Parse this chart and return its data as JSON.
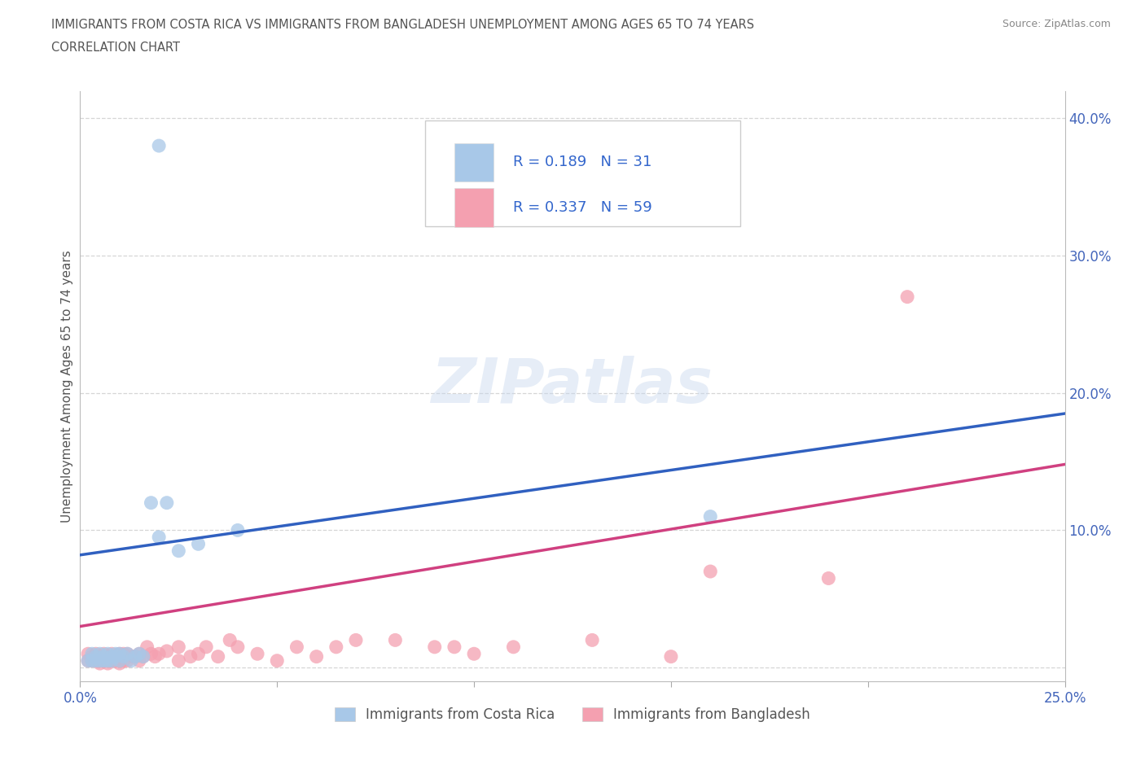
{
  "title_line1": "IMMIGRANTS FROM COSTA RICA VS IMMIGRANTS FROM BANGLADESH UNEMPLOYMENT AMONG AGES 65 TO 74 YEARS",
  "title_line2": "CORRELATION CHART",
  "source_text": "Source: ZipAtlas.com",
  "ylabel": "Unemployment Among Ages 65 to 74 years",
  "xlim": [
    0.0,
    0.25
  ],
  "ylim": [
    -0.01,
    0.42
  ],
  "xticks": [
    0.0,
    0.05,
    0.1,
    0.15,
    0.2,
    0.25
  ],
  "yticks": [
    0.0,
    0.1,
    0.2,
    0.3,
    0.4
  ],
  "xticklabels": [
    "0.0%",
    "",
    "",
    "",
    "",
    "25.0%"
  ],
  "yticklabels_right": [
    "",
    "10.0%",
    "20.0%",
    "30.0%",
    "40.0%"
  ],
  "color_blue": "#a8c8e8",
  "color_pink": "#f4a0b0",
  "trendline_blue": "#3060c0",
  "trendline_pink": "#d04080",
  "legend_label_blue": "Immigrants from Costa Rica",
  "legend_label_pink": "Immigrants from Bangladesh",
  "legend_R_blue": "0.189",
  "legend_N_blue": "31",
  "legend_R_pink": "0.337",
  "legend_N_pink": "59",
  "watermark": "ZIPatlas",
  "blue_x": [
    0.002,
    0.003,
    0.003,
    0.004,
    0.004,
    0.005,
    0.005,
    0.006,
    0.006,
    0.007,
    0.007,
    0.008,
    0.008,
    0.009,
    0.009,
    0.01,
    0.01,
    0.011,
    0.012,
    0.013,
    0.014,
    0.015,
    0.016,
    0.018,
    0.02,
    0.022,
    0.025,
    0.03,
    0.04,
    0.16,
    0.02
  ],
  "blue_y": [
    0.005,
    0.005,
    0.01,
    0.005,
    0.008,
    0.005,
    0.01,
    0.005,
    0.008,
    0.005,
    0.01,
    0.005,
    0.008,
    0.008,
    0.01,
    0.005,
    0.01,
    0.008,
    0.01,
    0.005,
    0.008,
    0.01,
    0.008,
    0.12,
    0.095,
    0.12,
    0.085,
    0.09,
    0.1,
    0.11,
    0.38
  ],
  "pink_x": [
    0.002,
    0.002,
    0.003,
    0.003,
    0.004,
    0.004,
    0.005,
    0.005,
    0.005,
    0.006,
    0.006,
    0.007,
    0.007,
    0.007,
    0.008,
    0.008,
    0.009,
    0.009,
    0.01,
    0.01,
    0.01,
    0.011,
    0.011,
    0.012,
    0.012,
    0.013,
    0.014,
    0.015,
    0.015,
    0.016,
    0.017,
    0.018,
    0.019,
    0.02,
    0.022,
    0.025,
    0.025,
    0.028,
    0.03,
    0.032,
    0.035,
    0.038,
    0.04,
    0.045,
    0.05,
    0.055,
    0.06,
    0.065,
    0.07,
    0.08,
    0.09,
    0.095,
    0.1,
    0.11,
    0.13,
    0.15,
    0.16,
    0.19,
    0.21
  ],
  "pink_y": [
    0.005,
    0.01,
    0.005,
    0.008,
    0.005,
    0.01,
    0.003,
    0.005,
    0.008,
    0.005,
    0.01,
    0.003,
    0.005,
    0.008,
    0.005,
    0.01,
    0.005,
    0.008,
    0.003,
    0.005,
    0.01,
    0.005,
    0.01,
    0.005,
    0.01,
    0.008,
    0.008,
    0.005,
    0.01,
    0.008,
    0.015,
    0.01,
    0.008,
    0.01,
    0.012,
    0.005,
    0.015,
    0.008,
    0.01,
    0.015,
    0.008,
    0.02,
    0.015,
    0.01,
    0.005,
    0.015,
    0.008,
    0.015,
    0.02,
    0.02,
    0.015,
    0.015,
    0.01,
    0.015,
    0.02,
    0.008,
    0.07,
    0.065,
    0.27
  ],
  "blue_trend_x": [
    0.0,
    0.25
  ],
  "blue_trend_y": [
    0.082,
    0.185
  ],
  "pink_trend_x": [
    0.0,
    0.25
  ],
  "pink_trend_y": [
    0.03,
    0.148
  ]
}
